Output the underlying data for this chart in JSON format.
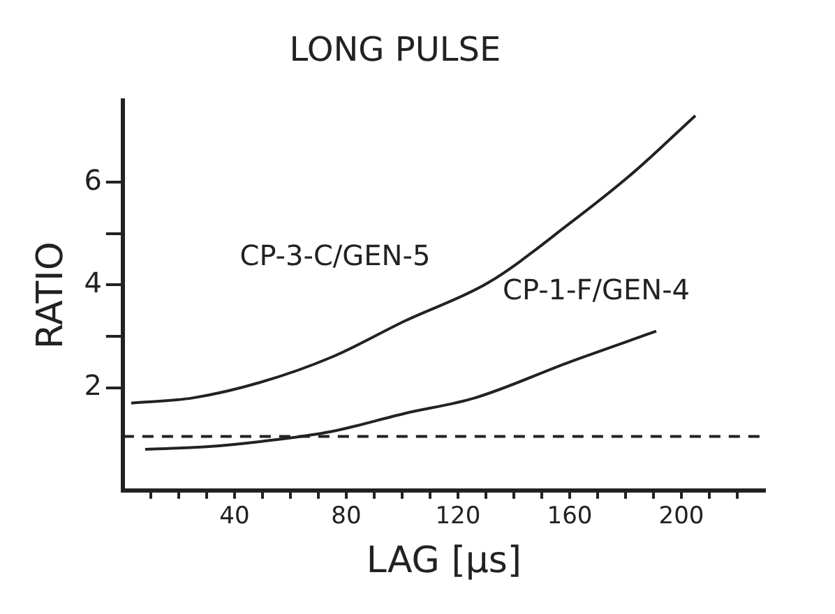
{
  "chart_data": {
    "type": "line",
    "title": "LONG PULSE",
    "xlabel": "LAG [μs]",
    "ylabel": "RATIO",
    "xlim": [
      0,
      230
    ],
    "xticks": [
      {
        "value": 10,
        "label": null
      },
      {
        "value": 20,
        "label": null
      },
      {
        "value": 30,
        "label": null
      },
      40,
      {
        "value": 50,
        "label": null
      },
      {
        "value": 60,
        "label": null
      },
      {
        "value": 70,
        "label": null
      },
      80,
      {
        "value": 90,
        "label": null
      },
      {
        "value": 100,
        "label": null
      },
      {
        "value": 110,
        "label": null
      },
      120,
      {
        "value": 130,
        "label": null
      },
      {
        "value": 140,
        "label": null
      },
      {
        "value": 150,
        "label": null
      },
      160,
      {
        "value": 170,
        "label": null
      },
      {
        "value": 180,
        "label": null
      },
      {
        "value": 190,
        "label": null
      },
      200,
      {
        "value": 210,
        "label": null
      },
      {
        "value": 220,
        "label": null
      }
    ],
    "ylim": [
      0,
      7.6
    ],
    "yticks": [
      2,
      {
        "value": 3,
        "label": null
      },
      4,
      {
        "value": 5,
        "label": null
      },
      6
    ],
    "series": [
      {
        "name": "CP-3-C/GEN-5",
        "color": "#222222",
        "x": [
          3,
          25,
          49,
          75,
          101,
          131,
          160,
          183,
          205
        ],
        "values": [
          1.7,
          1.8,
          2.1,
          2.6,
          3.3,
          4.05,
          5.2,
          6.2,
          7.3
        ]
      },
      {
        "name": "CP-1-F/GEN-4",
        "color": "#222222",
        "x": [
          8,
          30,
          49,
          75,
          101,
          126,
          160,
          191
        ],
        "values": [
          0.8,
          0.85,
          0.95,
          1.15,
          1.5,
          1.8,
          2.5,
          3.1
        ]
      }
    ],
    "ref_lines": [
      {
        "axis": "y",
        "value": 1.05,
        "color": "#222222",
        "line_style": "dashed"
      }
    ],
    "marker": "none",
    "line_style": "solid",
    "grid": false,
    "legend": false
  }
}
